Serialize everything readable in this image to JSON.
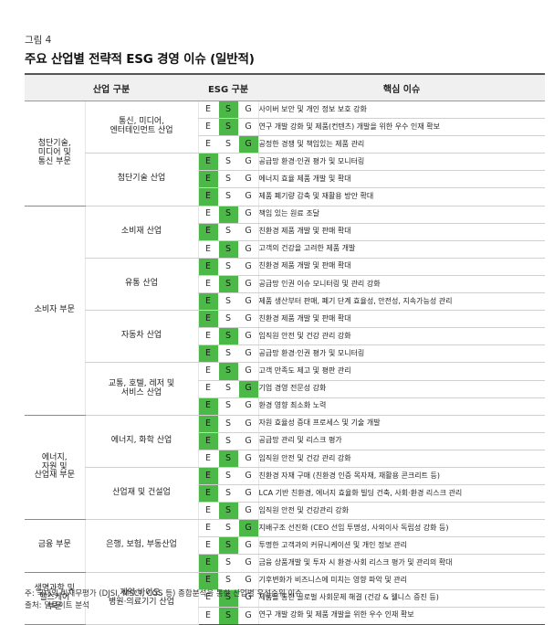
{
  "figure_label": "그림 4",
  "figure_title": "주요 산업별 전략적 ESG 경영 이슈 (일반적)",
  "headers": {
    "industry": "산업 구분",
    "esg": "ESG 구분",
    "issue": "핵심 이슈"
  },
  "esg_letters": [
    "E",
    "S",
    "G"
  ],
  "colors": {
    "highlight": "#4cb848"
  },
  "sectors": [
    {
      "name": "첨단기술,\n미디어 및\n통신 부문",
      "industries": [
        {
          "name": "통신, 미디어,\n엔터테인먼트 산업",
          "issues": [
            {
              "text": "사이버 보안 및 개인 정보 보호 강화",
              "hl": "S"
            },
            {
              "text": "연구 개발 강화 및 제품(컨텐츠) 개발을 위한 우수 인재 확보",
              "hl": "S"
            },
            {
              "text": "공정한 경쟁 및 책임있는 제품 관리",
              "hl": "G"
            }
          ]
        },
        {
          "name": "첨단기술 산업",
          "issues": [
            {
              "text": "공급망 환경·인권 평가 및 모니터링",
              "hl": "E"
            },
            {
              "text": "에너지 효율 제품 개발 및 확대",
              "hl": "E"
            },
            {
              "text": "제품 폐기량 감축 및 재활용 방안 확대",
              "hl": "E"
            }
          ]
        }
      ]
    },
    {
      "name": "소비자 부문",
      "industries": [
        {
          "name": "소비재 산업",
          "issues": [
            {
              "text": "책임 있는 원료 조달",
              "hl": "S"
            },
            {
              "text": "친환경 제품 개발 및 판매 확대",
              "hl": "E"
            },
            {
              "text": "고객의 건강을 고려한 제품 개발",
              "hl": "S"
            }
          ]
        },
        {
          "name": "유통 산업",
          "issues": [
            {
              "text": "친환경 제품 개발 및 판매 확대",
              "hl": "E"
            },
            {
              "text": "공급망 인권 이슈 모니터링 및 관리 강화",
              "hl": "S"
            },
            {
              "text": "제품 생산부터 판매, 폐기 단계 효율성, 안전성, 지속가능성 관리",
              "hl": "E"
            }
          ]
        },
        {
          "name": "자동차 산업",
          "issues": [
            {
              "text": "친환경 제품 개발 및 판매 확대",
              "hl": "E"
            },
            {
              "text": "임직원 안전 및 건강 관리 강화",
              "hl": "S"
            },
            {
              "text": "공급망 환경·인권 평가 및 모니터링",
              "hl": "E"
            }
          ]
        },
        {
          "name": "교통, 호텔, 레저 및\n서비스 산업",
          "issues": [
            {
              "text": "고객 만족도 제고 및 평판 관리",
              "hl": "S"
            },
            {
              "text": "기업 경영 전문성 강화",
              "hl": "G"
            },
            {
              "text": "환경 영향 최소화 노력",
              "hl": "E"
            }
          ]
        }
      ]
    },
    {
      "name": "에너지,\n자원 및\n산업재 부문",
      "industries": [
        {
          "name": "에너지, 화학 산업",
          "issues": [
            {
              "text": "자원 효율성 증대 프로세스 및 기술 개발",
              "hl": "E"
            },
            {
              "text": "공급망 관리 및 리스크 평가",
              "hl": "E"
            },
            {
              "text": "임직원 안전 및 건강 관리 강화",
              "hl": "S"
            }
          ]
        },
        {
          "name": "산업재 및 건설업",
          "issues": [
            {
              "text": "친환경 자재 구매 (친환경 인증 목자재, 재활용 콘크리트 등)",
              "hl": "E"
            },
            {
              "text": "LCA 기반 친환경, 에너지 효율화 빌딩 건축, 사회·환경 리스크 관리",
              "hl": "E"
            },
            {
              "text": "임직원 안전 및 건강관리 강화",
              "hl": "S"
            }
          ]
        }
      ]
    },
    {
      "name": "금융 부문",
      "industries": [
        {
          "name": "은행, 보험, 부동산업",
          "issues": [
            {
              "text": "지배구조 선진화 (CEO 선임 투명성, 사외이사 독립성 강화 등)",
              "hl": "G"
            },
            {
              "text": "투명한 고객과의 커뮤니케이션 및 개인 정보 관리",
              "hl": "S"
            },
            {
              "text": "금융 상품개발 및 투자 시 환경·사회 리스크 평가 및 관리의 확대",
              "hl": "E"
            }
          ]
        }
      ]
    },
    {
      "name": "생명과학 및\n헬스케어\n부문",
      "industries": [
        {
          "name": "제약·바이오,\n병원·의료기기 산업",
          "issues": [
            {
              "text": "기후변화가 비즈니스에 미치는 영향 파악 및 관리",
              "hl": "E"
            },
            {
              "text": "제품을 통한 글로벌 사회문제 해결 (건강 & 웰니스 증진 등)",
              "hl": "S"
            },
            {
              "text": "연구 개발 강화 및 제품 개발을 위한 우수 인재 확보",
              "hl": "S"
            }
          ]
        }
      ]
    }
  ],
  "footnote": {
    "note": "주: 국내외 비재무평가 (DJSI, MSCI, CGS 등) 종합분석을 통한 산업별 우선순위 이슈",
    "source": "출처: 딜로이트 분석"
  }
}
